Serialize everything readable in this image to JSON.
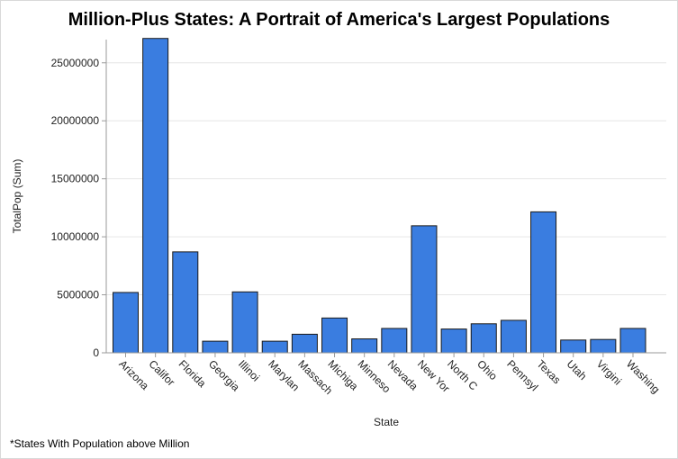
{
  "footnote": "*States With Population above Million",
  "chart_data": {
    "type": "bar",
    "title": "Million-Plus States: A Portrait of America's Largest Populations",
    "xlabel": "State",
    "ylabel": "TotalPop (Sum)",
    "ylim": [
      0,
      27000000
    ],
    "yticks": [
      0,
      5000000,
      10000000,
      15000000,
      20000000,
      25000000
    ],
    "grid": true,
    "bar_color": "#3a7de0",
    "categories": [
      "Arizona",
      "Califor",
      "Florida",
      "Georgia",
      "Illinoi",
      "Marylan",
      "Massach",
      "Michiga",
      "Minneso",
      "Nevada",
      "New Yor",
      "North C",
      "Ohio",
      "Pennsyl",
      "Texas",
      "Utah",
      "Virgini",
      "Washing"
    ],
    "values": [
      5200000,
      27100000,
      8700000,
      1000000,
      5250000,
      1000000,
      1600000,
      3000000,
      1200000,
      2100000,
      10950000,
      2050000,
      2500000,
      2800000,
      12150000,
      1100000,
      1150000,
      2100000
    ]
  }
}
